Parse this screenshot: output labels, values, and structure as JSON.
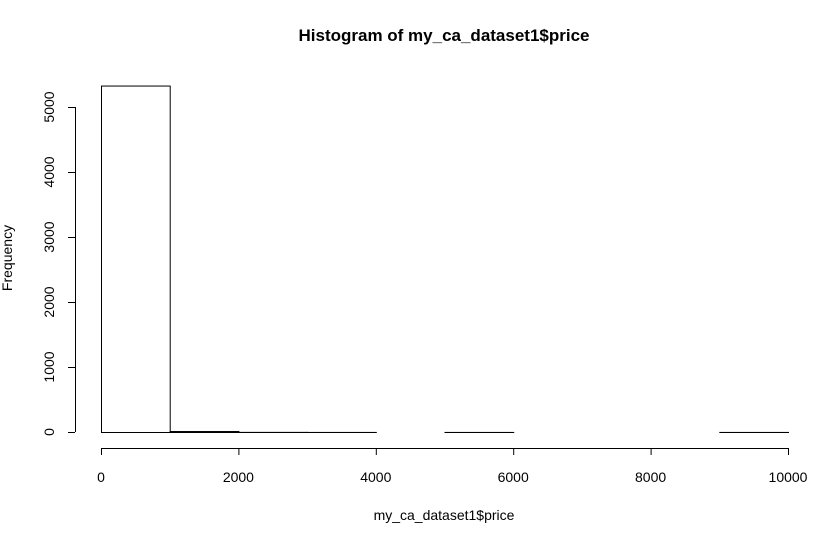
{
  "chart_data": {
    "type": "bar",
    "title": "Histogram of my_ca_dataset1$price",
    "xlabel": "my_ca_dataset1$price",
    "ylabel": "Frequency",
    "bins": [
      {
        "start": 0,
        "end": 1000,
        "count": 5330
      },
      {
        "start": 1000,
        "end": 2000,
        "count": 15
      },
      {
        "start": 2000,
        "end": 3000,
        "count": 2
      },
      {
        "start": 3000,
        "end": 4000,
        "count": 1
      },
      {
        "start": 4000,
        "end": 5000,
        "count": 0
      },
      {
        "start": 5000,
        "end": 6000,
        "count": 1
      },
      {
        "start": 6000,
        "end": 7000,
        "count": 0
      },
      {
        "start": 7000,
        "end": 8000,
        "count": 0
      },
      {
        "start": 8000,
        "end": 9000,
        "count": 0
      },
      {
        "start": 9000,
        "end": 10000,
        "count": 1
      }
    ],
    "xlim": [
      0,
      10000
    ],
    "ylim": [
      0,
      5330
    ],
    "x_ticks": [
      "0",
      "2000",
      "4000",
      "6000",
      "8000",
      "10000"
    ],
    "y_ticks": [
      "0",
      "1000",
      "2000",
      "3000",
      "4000",
      "5000"
    ],
    "grid": false,
    "legend": "none"
  }
}
